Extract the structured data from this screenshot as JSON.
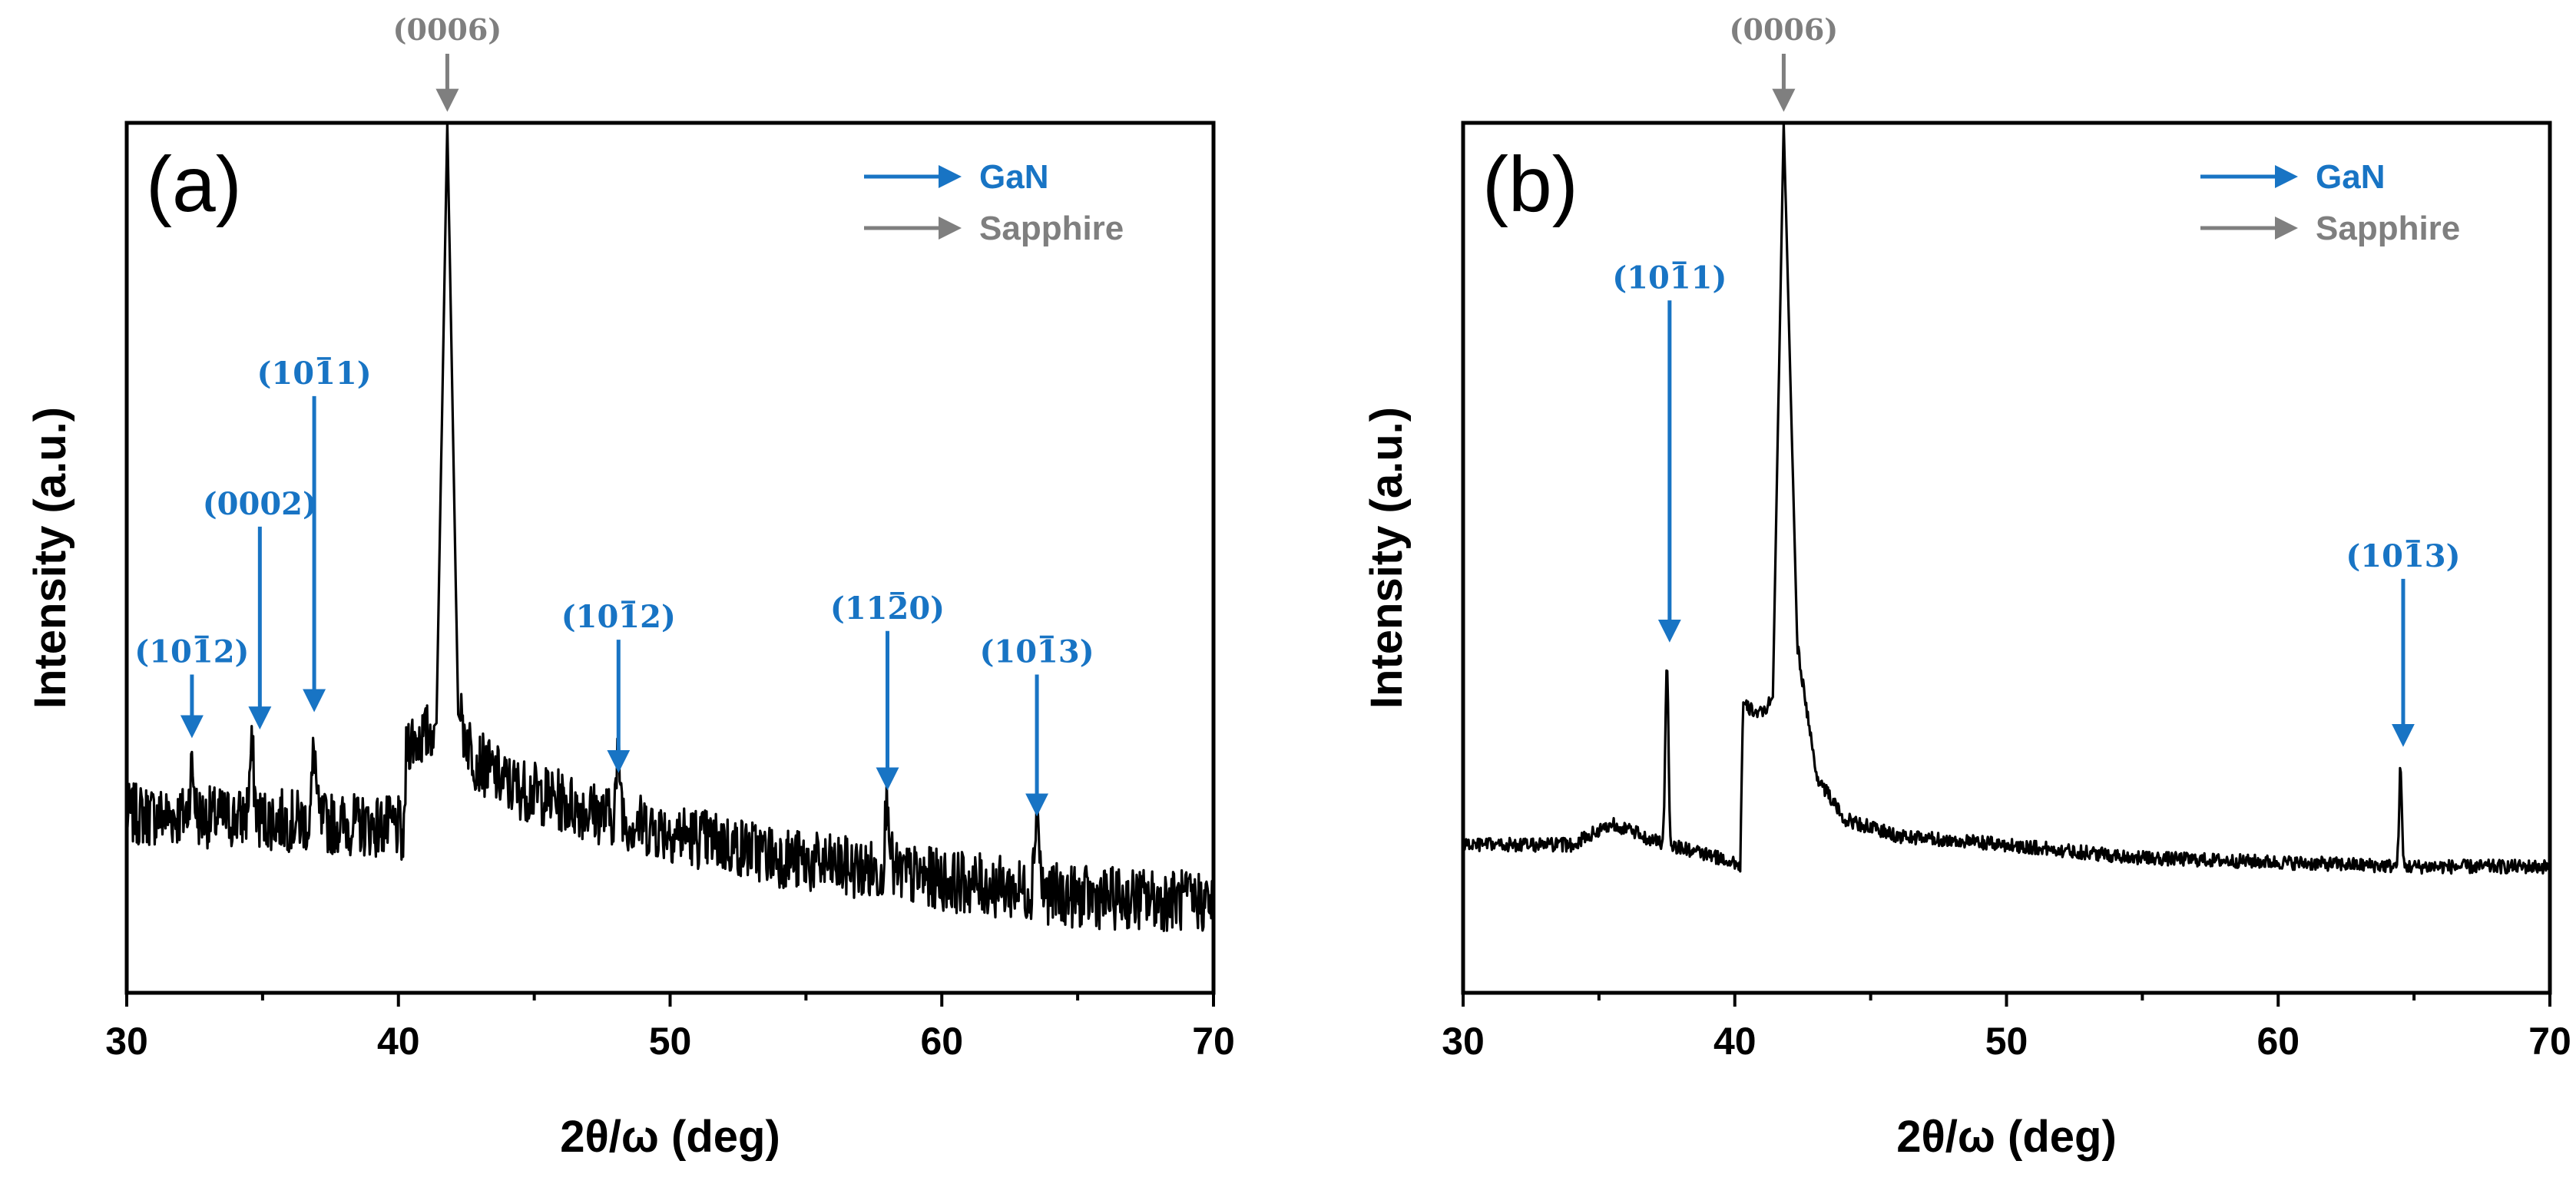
{
  "colors": {
    "gan": "#1874c4",
    "sapphire": "#7f7f7f",
    "trace": "#000000"
  },
  "chart_data": [
    {
      "type": "line",
      "panel_label": "(a)",
      "xlabel": "2θ/ω (deg)",
      "ylabel": "Intensity (a.u.)",
      "xlim": [
        30,
        70
      ],
      "ylim": [
        0,
        100
      ],
      "xticks": [
        30,
        40,
        50,
        60,
        70
      ],
      "xtick_labels": [
        "30",
        "40",
        "50",
        "60",
        "70"
      ],
      "legend": [
        {
          "label": "GaN",
          "color_key": "gan"
        },
        {
          "label": "Sapphire",
          "color_key": "sapphire"
        }
      ],
      "noise_amplitude": 3.6,
      "baseline": [
        [
          30,
          20.5
        ],
        [
          35,
          20
        ],
        [
          40,
          19
        ],
        [
          40.2,
          17
        ],
        [
          40.3,
          29
        ],
        [
          41,
          29.5
        ],
        [
          41.4,
          31
        ],
        [
          41.8,
          100
        ],
        [
          42.2,
          32
        ],
        [
          42.8,
          27
        ],
        [
          44,
          24
        ],
        [
          48,
          20
        ],
        [
          55,
          15
        ],
        [
          60,
          13
        ],
        [
          65,
          11
        ],
        [
          70,
          10.5
        ]
      ],
      "peaks": [
        {
          "x": 32.4,
          "height": 5.5,
          "width": 0.12
        },
        {
          "x": 34.6,
          "height": 7.5,
          "width": 0.12
        },
        {
          "x": 36.9,
          "height": 8.5,
          "width": 0.1
        },
        {
          "x": 48.1,
          "height": 7,
          "width": 0.12
        },
        {
          "x": 58.0,
          "height": 9,
          "width": 0.12
        },
        {
          "x": 63.5,
          "height": 10,
          "width": 0.12
        }
      ],
      "annotations": [
        {
          "label": "(1012)",
          "overbar": 3,
          "x": 32.4,
          "label_y": 38,
          "tip_y": 29,
          "color_key": "gan"
        },
        {
          "label": "(0002)",
          "overbar": 0,
          "x": 34.9,
          "label_y": 55,
          "tip_y": 30,
          "color_key": "gan"
        },
        {
          "label": "(1011)",
          "overbar": 3,
          "x": 36.9,
          "label_y": 70,
          "tip_y": 32,
          "color_key": "gan"
        },
        {
          "label": "(1012)",
          "overbar": 3,
          "x": 48.1,
          "label_y": 42,
          "tip_y": 25,
          "color_key": "gan"
        },
        {
          "label": "(1120)",
          "overbar": 3,
          "x": 58.0,
          "label_y": 43,
          "tip_y": 23,
          "color_key": "gan"
        },
        {
          "label": "(1013)",
          "overbar": 3,
          "x": 63.5,
          "label_y": 38,
          "tip_y": 20,
          "color_key": "gan"
        },
        {
          "label": "(0006)",
          "overbar": 0,
          "x": 41.8,
          "label_y": 110,
          "tip_y": 101,
          "color_key": "sapphire"
        }
      ]
    },
    {
      "type": "line",
      "panel_label": "(b)",
      "xlabel": "2θ/ω (deg)",
      "ylabel": "Intensity (a.u.)",
      "xlim": [
        30,
        70
      ],
      "ylim": [
        0,
        100
      ],
      "xticks": [
        30,
        40,
        50,
        60,
        70
      ],
      "xtick_labels": [
        "30",
        "40",
        "50",
        "60",
        "70"
      ],
      "legend": [
        {
          "label": "GaN",
          "color_key": "gan"
        },
        {
          "label": "Sapphire",
          "color_key": "sapphire"
        }
      ],
      "noise_amplitude": 0.8,
      "baseline": [
        [
          30,
          17
        ],
        [
          34,
          17
        ],
        [
          35.5,
          19.5
        ],
        [
          37,
          17.5
        ],
        [
          40,
          15
        ],
        [
          40.2,
          14.5
        ],
        [
          40.3,
          33
        ],
        [
          41,
          32
        ],
        [
          41.4,
          34
        ],
        [
          41.8,
          100
        ],
        [
          42.3,
          40
        ],
        [
          43,
          25
        ],
        [
          44,
          20
        ],
        [
          46,
          18
        ],
        [
          50,
          17
        ],
        [
          55,
          15.5
        ],
        [
          60,
          15
        ],
        [
          65,
          14.5
        ],
        [
          70,
          14.5
        ]
      ],
      "peaks": [
        {
          "x": 37.5,
          "height": 21,
          "width": 0.08
        },
        {
          "x": 64.5,
          "height": 11,
          "width": 0.07
        }
      ],
      "annotations": [
        {
          "label": "(1011)",
          "overbar": 3,
          "x": 37.6,
          "label_y": 81,
          "tip_y": 40,
          "color_key": "gan"
        },
        {
          "label": "(1013)",
          "overbar": 3,
          "x": 64.6,
          "label_y": 49,
          "tip_y": 28,
          "color_key": "gan"
        },
        {
          "label": "(0006)",
          "overbar": 0,
          "x": 41.8,
          "label_y": 110,
          "tip_y": 101,
          "color_key": "sapphire"
        }
      ]
    }
  ]
}
